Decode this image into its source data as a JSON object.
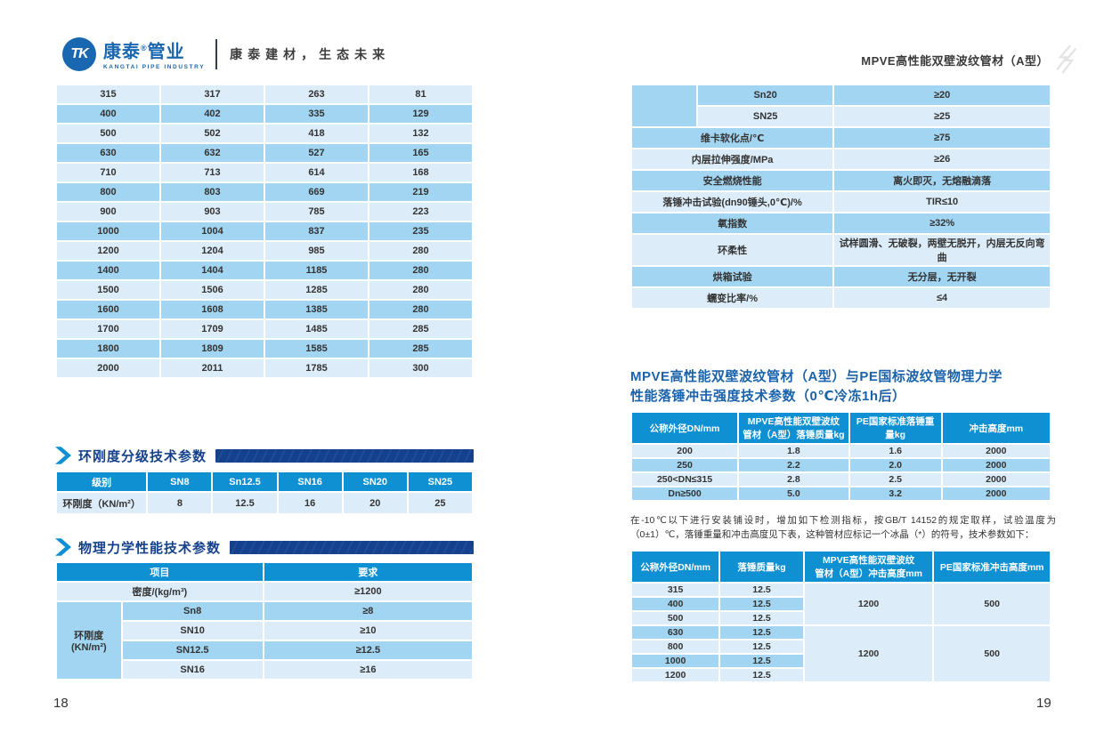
{
  "colors": {
    "accent_blue": "#0e90d2",
    "navy": "#15418c",
    "row_light": "#dcedf9",
    "row_medium": "#a2d5f1",
    "logo_blue": "#1a67b1",
    "title_blue": "#1a63ab"
  },
  "header": {
    "logo": {
      "monogram": "TK",
      "brand_a": "康泰",
      "reg": "®",
      "brand_b": "管业",
      "sub": "KANGTAI PIPE INDUSTRY",
      "tagline": "康泰建材，生态未来"
    },
    "right_title": "MPVE高性能双壁波纹管材（A型）"
  },
  "left_page": {
    "page_number": "18",
    "dims_table": {
      "col_widths": [
        "25%",
        "25%",
        "25%",
        "25%"
      ],
      "rows": [
        {
          "cls": "l",
          "cells": [
            "315",
            "317",
            "263",
            "81"
          ]
        },
        {
          "cls": "m",
          "cells": [
            "400",
            "402",
            "335",
            "129"
          ]
        },
        {
          "cls": "l",
          "cells": [
            "500",
            "502",
            "418",
            "132"
          ]
        },
        {
          "cls": "m",
          "cells": [
            "630",
            "632",
            "527",
            "165"
          ]
        },
        {
          "cls": "l",
          "cells": [
            "710",
            "713",
            "614",
            "168"
          ]
        },
        {
          "cls": "m",
          "cells": [
            "800",
            "803",
            "669",
            "219"
          ]
        },
        {
          "cls": "l",
          "cells": [
            "900",
            "903",
            "785",
            "223"
          ]
        },
        {
          "cls": "m",
          "cells": [
            "1000",
            "1004",
            "837",
            "235"
          ]
        },
        {
          "cls": "l",
          "cells": [
            "1200",
            "1204",
            "985",
            "280"
          ]
        },
        {
          "cls": "m",
          "cells": [
            "1400",
            "1404",
            "1185",
            "280"
          ]
        },
        {
          "cls": "l",
          "cells": [
            "1500",
            "1506",
            "1285",
            "280"
          ]
        },
        {
          "cls": "m",
          "cells": [
            "1600",
            "1608",
            "1385",
            "280"
          ]
        },
        {
          "cls": "l",
          "cells": [
            "1700",
            "1709",
            "1485",
            "285"
          ]
        },
        {
          "cls": "m",
          "cells": [
            "1800",
            "1809",
            "1585",
            "285"
          ]
        },
        {
          "cls": "l",
          "cells": [
            "2000",
            "2011",
            "1785",
            "300"
          ]
        }
      ]
    },
    "section1_title": "环刚度分级技术参数",
    "ring_table": {
      "col_widths": [
        "22%",
        "15.6%",
        "15.6%",
        "15.6%",
        "15.6%",
        "15.6%"
      ],
      "header": [
        "级别",
        "SN8",
        "Sn12.5",
        "SN16",
        "SN20",
        "SN25"
      ],
      "rows": [
        {
          "cls": "l",
          "cells": [
            "环刚度（KN/m²）",
            "8",
            "12.5",
            "16",
            "20",
            "25"
          ]
        }
      ]
    },
    "section2_title": "物理力学性能技术参数",
    "phys_table": {
      "col_widths": [
        "15.5%",
        "34%",
        "50.5%"
      ],
      "header": [
        {
          "t": "项目",
          "cs": 2
        },
        {
          "t": "要求"
        }
      ],
      "rows": [
        {
          "cls": "l",
          "cells": [
            {
              "t": "密度/(kg/m³)",
              "cs": 2
            },
            "≥1200"
          ]
        },
        {
          "cls": "m",
          "cells": [
            {
              "t": "环刚度\n(KN/m²)",
              "rs": 4,
              "cls": "m"
            },
            "Sn8",
            "≥8"
          ]
        },
        {
          "cls": "l",
          "cells": [
            "SN10",
            "≥10"
          ]
        },
        {
          "cls": "m",
          "cells": [
            "SN12.5",
            "≥12.5"
          ]
        },
        {
          "cls": "l",
          "cells": [
            "SN16",
            "≥16"
          ]
        }
      ]
    }
  },
  "right_page": {
    "page_number": "19",
    "cont_table": {
      "col_widths": [
        "15.5%",
        "32.5%",
        "52%"
      ],
      "rows": [
        {
          "cls": "m",
          "cells": [
            {
              "t": "",
              "rs": 2,
              "cls": "m"
            },
            "Sn20",
            "≥20"
          ]
        },
        {
          "cls": "l",
          "cells": [
            "SN25",
            "≥25"
          ]
        },
        {
          "cls": "m",
          "cells": [
            {
              "t": "维卡软化点/℃",
              "cs": 2
            },
            "≥75"
          ]
        },
        {
          "cls": "l",
          "cells": [
            {
              "t": "内层拉伸强度/MPa",
              "cs": 2
            },
            "≥26"
          ]
        },
        {
          "cls": "m",
          "cells": [
            {
              "t": "安全燃烧性能",
              "cs": 2
            },
            "离火即灭，无熔融滴落"
          ]
        },
        {
          "cls": "l",
          "cells": [
            {
              "t": "落锤冲击试验(dn90锤头,0℃)/%",
              "cs": 2
            },
            "TIR≤10"
          ]
        },
        {
          "cls": "m",
          "cells": [
            {
              "t": "氧指数",
              "cs": 2
            },
            "≥32%"
          ]
        },
        {
          "cls": "l",
          "cells": [
            {
              "t": "环柔性",
              "cs": 2
            },
            "试样圆滑、无破裂，两壁无脱开，内层无反向弯曲"
          ]
        },
        {
          "cls": "m",
          "cells": [
            {
              "t": "烘箱试验",
              "cs": 2
            },
            "无分层，无开裂"
          ]
        },
        {
          "cls": "l",
          "cells": [
            {
              "t": "蠕变比率/%",
              "cs": 2
            },
            "≤4"
          ]
        }
      ]
    },
    "impact_title": "MPVE高性能双壁波纹管材（A型）与PE国标波纹管物理力学\n性能落锤冲击强度技术参数（0℃冷冻1h后）",
    "impact_table": {
      "col_widths": [
        "25.5%",
        "26.5%",
        "22%",
        "26%"
      ],
      "header": [
        "公称外径DN/mm",
        "MPVE高性能双壁波纹\n管材（A型）落锤质量kg",
        "PE国家标准落锤重量kg",
        "冲击高度mm"
      ],
      "rows": [
        {
          "cls": "l",
          "cells": [
            "200",
            "1.8",
            "1.6",
            "2000"
          ]
        },
        {
          "cls": "m",
          "cells": [
            "250",
            "2.2",
            "2.0",
            "2000"
          ]
        },
        {
          "cls": "l",
          "cells": [
            "250<DN≤315",
            "2.8",
            "2.5",
            "2000"
          ]
        },
        {
          "cls": "m",
          "cells": [
            "Dn≥500",
            "5.0",
            "3.2",
            "2000"
          ]
        }
      ]
    },
    "note": "在-10℃以下进行安装铺设时，增加如下检测指标，按GB/T 14152的规定取样，试验温度为（0±1）℃，落锤重量和冲击高度见下表，这种管材应标记一个冰晶（*）的符号，技术参数如下：",
    "cold_table": {
      "col_widths": [
        "21%",
        "20%",
        "31%",
        "28%"
      ],
      "header": [
        "公称外径DN/mm",
        "落锤质量kg",
        "MPVE高性能双壁波纹\n管材（A型）冲击高度mm",
        "PE国家标准冲击高度mm"
      ],
      "rows": [
        {
          "cls": "l",
          "cells": [
            "315",
            "12.5",
            {
              "t": "1200",
              "rs": 3,
              "cls": "l"
            },
            {
              "t": "500",
              "rs": 3,
              "cls": "l"
            }
          ]
        },
        {
          "cls": "m",
          "cells": [
            "400",
            "12.5"
          ]
        },
        {
          "cls": "l",
          "cells": [
            "500",
            "12.5"
          ]
        },
        {
          "cls": "m",
          "cells": [
            "630",
            "12.5",
            {
              "t": "1200",
              "rs": 4,
              "cls": "l"
            },
            {
              "t": "500",
              "rs": 4,
              "cls": "l"
            }
          ]
        },
        {
          "cls": "l",
          "cells": [
            "800",
            "12.5"
          ]
        },
        {
          "cls": "m",
          "cells": [
            "1000",
            "12.5"
          ]
        },
        {
          "cls": "l",
          "cells": [
            "1200",
            "12.5"
          ]
        }
      ]
    }
  }
}
